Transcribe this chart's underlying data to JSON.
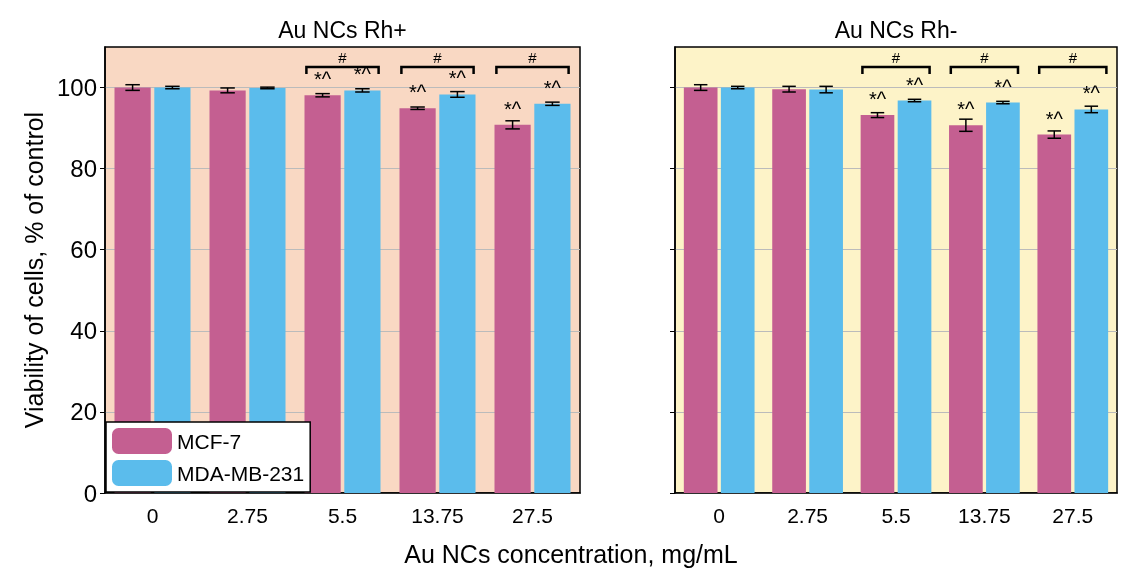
{
  "chart_data": [
    {
      "type": "bar",
      "ylabel": "Viability of cells, % of control",
      "xlabel": "Au NCs concentration, mg/mL",
      "categories": [
        "0",
        "2.75",
        "5.5",
        "13.75",
        "27.5"
      ],
      "ylim": [
        0,
        110
      ],
      "yticks": [
        0,
        20,
        40,
        60,
        80,
        100
      ],
      "grid": "y",
      "legend": "bottom left",
      "bands": [
        {
          "axis": "x",
          "from": "0",
          "to": "27.5",
          "label": "Au NCs Rh+",
          "color": "#f9d8c3"
        }
      ],
      "series": [
        {
          "name": "MCF-7",
          "color": "#c45f91",
          "values": [
            100,
            99.3,
            98.1,
            94.9,
            90.8
          ],
          "errors": [
            0.7,
            0.6,
            0.4,
            0.3,
            1.0
          ],
          "value_labels": [
            null,
            null,
            "*^",
            "*^",
            "*^"
          ]
        },
        {
          "name": "MDA-MB-231",
          "color": "#5bbcec",
          "values": [
            100,
            99.9,
            99.3,
            98.3,
            96.0
          ],
          "errors": [
            0.3,
            0.2,
            0.4,
            0.7,
            0.4
          ],
          "value_labels": [
            null,
            null,
            "*^",
            "*^",
            "*^"
          ]
        }
      ],
      "annotations": [
        "#",
        "#",
        "#"
      ]
    },
    {
      "type": "bar",
      "categories": [
        "0",
        "2.75",
        "5.5",
        "13.75",
        "27.5"
      ],
      "ylim": [
        0,
        110
      ],
      "yticks": [
        0,
        20,
        40,
        60,
        80,
        100
      ],
      "grid": "y",
      "tick_labels": "x",
      "bands": [
        {
          "axis": "x",
          "from": "0",
          "to": "27.5",
          "label": "Au NCs Rh-",
          "color": "#fdf3c8"
        }
      ],
      "series": [
        {
          "color": "#c45f91",
          "values": [
            100,
            99.6,
            93.2,
            90.7,
            88.4
          ],
          "errors": [
            0.7,
            0.7,
            0.6,
            1.5,
            0.9
          ],
          "value_labels": [
            null,
            null,
            "*^",
            "*^",
            "*^"
          ]
        },
        {
          "color": "#5bbcec",
          "values": [
            100,
            99.5,
            96.8,
            96.3,
            94.6
          ],
          "errors": [
            0.3,
            0.8,
            0.3,
            0.3,
            0.8
          ],
          "value_labels": [
            null,
            null,
            "*^",
            "*^",
            "*^"
          ]
        }
      ],
      "annotations": [
        "#",
        "#",
        "#"
      ]
    }
  ]
}
